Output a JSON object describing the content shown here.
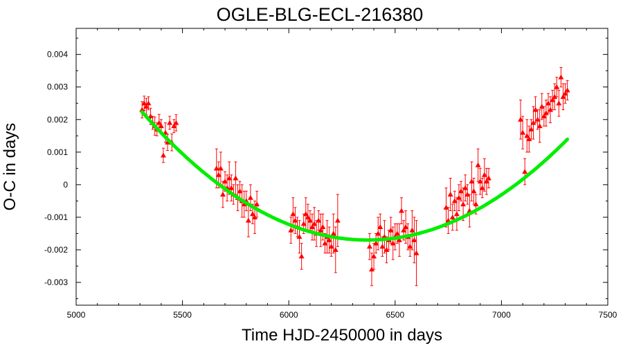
{
  "colors": {
    "points": "#ff0000",
    "fit": "#00ee00",
    "axes": "#000000"
  },
  "chart_data": {
    "type": "scatter",
    "title": "OGLE-BLG-ECL-216380",
    "xlabel": "Time HJD-2450000 in days",
    "ylabel": "O-C in days",
    "xlim": [
      5000,
      7500
    ],
    "ylim": [
      -0.0037,
      0.0048
    ],
    "xticks": [
      5000,
      5500,
      6000,
      6500,
      7000,
      7500
    ],
    "yticks": [
      -0.003,
      -0.002,
      -0.001,
      0,
      0.001,
      0.002,
      0.003,
      0.004
    ],
    "xtick_labels": [
      "5000",
      "5500",
      "6000",
      "6500",
      "7000",
      "7500"
    ],
    "ytick_labels": [
      "-0.003",
      "-0.002",
      "-0.001",
      "0",
      "0.001",
      "0.002",
      "0.003",
      "0.004"
    ],
    "grid": false,
    "legend": "none",
    "fit": {
      "type": "parabola",
      "x_range": [
        5310,
        7310
      ],
      "vertex_x": 6370,
      "vertex_y": -0.0017,
      "curvature": 3.5e-09
    },
    "series": [
      {
        "marker": "triangle",
        "x": [
          5310,
          5320,
          5330,
          5340,
          5350,
          5360,
          5370,
          5380,
          5390,
          5400,
          5410,
          5420,
          5430,
          5440,
          5450,
          5460,
          5470,
          5660,
          5670,
          5680,
          5690,
          5700,
          5710,
          5720,
          5730,
          5740,
          5750,
          5760,
          5770,
          5780,
          5790,
          5800,
          5810,
          5820,
          5830,
          5840,
          5850,
          6010,
          6020,
          6030,
          6040,
          6050,
          6060,
          6070,
          6080,
          6090,
          6100,
          6110,
          6120,
          6130,
          6140,
          6150,
          6160,
          6170,
          6180,
          6190,
          6200,
          6210,
          6220,
          6230,
          6380,
          6390,
          6400,
          6410,
          6420,
          6430,
          6440,
          6450,
          6460,
          6470,
          6480,
          6490,
          6500,
          6510,
          6520,
          6530,
          6540,
          6550,
          6560,
          6570,
          6580,
          6590,
          6600,
          6740,
          6750,
          6760,
          6770,
          6780,
          6790,
          6800,
          6810,
          6820,
          6830,
          6840,
          6850,
          6860,
          6870,
          6880,
          6890,
          6900,
          6910,
          6920,
          6930,
          6940,
          7090,
          7100,
          7110,
          7120,
          7130,
          7140,
          7150,
          7160,
          7170,
          7180,
          7190,
          7200,
          7210,
          7220,
          7230,
          7240,
          7250,
          7260,
          7270,
          7280,
          7290,
          7300,
          7310
        ],
        "y": [
          0.0023,
          0.0025,
          0.0024,
          0.0025,
          0.0021,
          0.0019,
          0.0018,
          0.0017,
          0.0019,
          0.0018,
          0.0009,
          0.0016,
          0.0013,
          0.0019,
          0.0013,
          0.0018,
          0.0019,
          0.0005,
          0.0003,
          0.0005,
          -0.0003,
          0.0001,
          -0.0001,
          0.0002,
          -0.0001,
          -0.0003,
          0.0002,
          -0.0004,
          -0.0002,
          -0.0005,
          -0.0006,
          -0.0005,
          -0.0011,
          -0.0004,
          -0.0009,
          -0.001,
          -0.0006,
          -0.0014,
          -0.0009,
          -0.0011,
          -0.0013,
          -0.0016,
          -0.0022,
          -0.0012,
          -0.0009,
          -0.001,
          -0.0011,
          -0.0013,
          -0.0012,
          -0.0015,
          -0.0011,
          -0.0014,
          -0.0013,
          -0.0018,
          -0.0016,
          -0.0017,
          -0.0019,
          -0.0015,
          -0.002,
          -0.0011,
          -0.0019,
          -0.0026,
          -0.0022,
          -0.0018,
          -0.0015,
          -0.0013,
          -0.0019,
          -0.0016,
          -0.002,
          -0.0017,
          -0.0014,
          -0.0018,
          -0.0016,
          -0.0015,
          -0.0017,
          -0.0008,
          -0.0014,
          -0.0013,
          -0.0016,
          -0.0019,
          -0.0014,
          -0.0017,
          -0.0021,
          -0.0007,
          -0.0011,
          -0.0003,
          -0.001,
          -0.0005,
          -0.0009,
          -0.0004,
          -0.0002,
          -0.0006,
          -0.0001,
          -0.0003,
          -0.0008,
          0.0001,
          -0.0002,
          -0.0006,
          0.0006,
          0.0001,
          -0.0001,
          0.0003,
          0.0001,
          0.0002,
          0.002,
          0.0016,
          0.0004,
          0.0015,
          0.0014,
          0.0017,
          0.0019,
          0.0023,
          0.002,
          0.0018,
          0.0024,
          0.0021,
          0.0022,
          0.0025,
          0.0023,
          0.0026,
          0.0027,
          0.003,
          0.0025,
          0.0033,
          0.0027,
          0.0028,
          0.0029
        ],
        "err": [
          0.00025,
          0.00022,
          0.00025,
          0.0002,
          0.00025,
          0.0002,
          0.00028,
          0.0002,
          0.00026,
          0.0002,
          0.00022,
          0.0003,
          0.00025,
          0.0002,
          0.00026,
          0.0002,
          0.00025,
          0.0006,
          0.0004,
          0.0005,
          0.0004,
          0.0003,
          0.0004,
          0.0005,
          0.0004,
          0.0003,
          0.0005,
          0.0004,
          0.0003,
          0.0005,
          0.0004,
          0.0003,
          0.0005,
          0.0004,
          0.0003,
          0.0005,
          0.0004,
          0.0004,
          0.0005,
          0.0004,
          0.0003,
          0.0005,
          0.0004,
          0.0003,
          0.0005,
          0.0004,
          0.0003,
          0.0004,
          0.0005,
          0.0004,
          0.0003,
          0.0005,
          0.0004,
          0.0003,
          0.0005,
          0.0004,
          0.0003,
          0.0006,
          0.0007,
          0.0008,
          0.0004,
          0.0005,
          0.0004,
          0.0003,
          0.0005,
          0.0004,
          0.0003,
          0.0005,
          0.0004,
          0.0003,
          0.0004,
          0.0005,
          0.0004,
          0.0003,
          0.0005,
          0.0004,
          0.0003,
          0.0005,
          0.0004,
          0.0003,
          0.0006,
          0.0007,
          0.001,
          0.0006,
          0.0004,
          0.0005,
          0.0004,
          0.0003,
          0.0005,
          0.0004,
          0.0003,
          0.0005,
          0.0004,
          0.0003,
          0.0005,
          0.0006,
          0.0004,
          0.0003,
          0.0005,
          0.0004,
          0.0003,
          0.0005,
          0.0004,
          0.0003,
          0.0006,
          0.0005,
          0.0004,
          0.0005,
          0.0004,
          0.0003,
          0.0005,
          0.0004,
          0.0003,
          0.0005,
          0.0004,
          0.0003,
          0.0004,
          0.0003,
          0.0004,
          0.0003,
          0.0004,
          0.0003,
          0.0004,
          0.0003,
          0.0004,
          0.0003,
          0.0003
        ]
      }
    ]
  }
}
